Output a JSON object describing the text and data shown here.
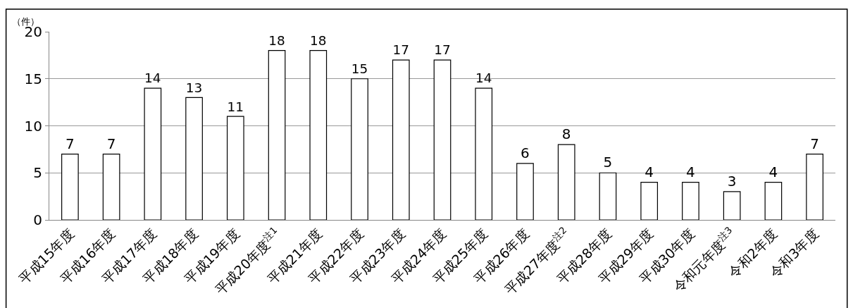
{
  "chart_data": {
    "type": "bar",
    "ylabel": "（件）",
    "categories": [
      "平成15年度",
      "平成16年度",
      "平成17年度",
      "平成18年度",
      "平成19年度",
      "平成20年度$^{注1}$",
      "平成21年度",
      "平成22年度",
      "平成23年度",
      "平成24年度",
      "平成25年度",
      "平成26年度",
      "平成27年度$^{注2}$",
      "平成28年度",
      "平成29年度",
      "平成30年度",
      "令和元年度$^{注3}$",
      "令和2年度",
      "令和3年度"
    ],
    "values": [
      7,
      7,
      14,
      13,
      11,
      18,
      18,
      15,
      17,
      17,
      14,
      6,
      8,
      5,
      4,
      4,
      3,
      4,
      7
    ],
    "color": "#ffffff",
    "ylim": [
      0,
      20
    ],
    "yticks": [
      0,
      5,
      10,
      15,
      20
    ],
    "grid": "y",
    "data_labels": true
  }
}
